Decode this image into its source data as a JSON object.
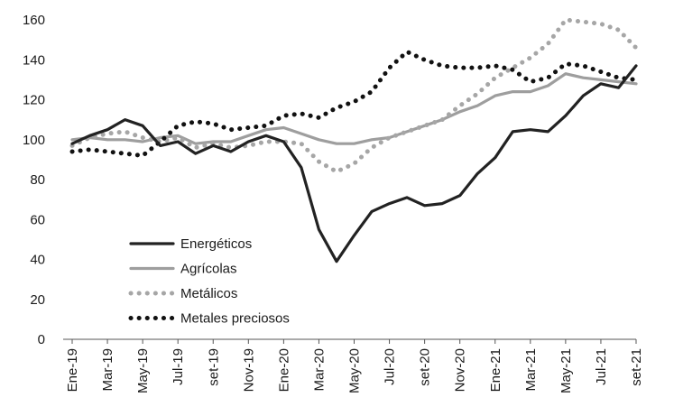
{
  "chart_data": {
    "type": "line",
    "title": "",
    "xlabel": "",
    "ylabel": "",
    "ylim": [
      0,
      160
    ],
    "yticks": [
      0,
      20,
      40,
      60,
      80,
      100,
      120,
      140,
      160
    ],
    "ytick_labels": [
      "0",
      "20",
      "40",
      "60",
      "80",
      "100",
      "120",
      "140",
      "160"
    ],
    "categories": [
      "Ene-19",
      "Feb-19",
      "Mar-19",
      "Abr-19",
      "May-19",
      "Jun-19",
      "Jul-19",
      "Ago-19",
      "set-19",
      "Oct-19",
      "Nov-19",
      "Dic-19",
      "Ene-20",
      "Feb-20",
      "Mar-20",
      "Abr-20",
      "May-20",
      "Jun-20",
      "Jul-20",
      "Ago-20",
      "set-20",
      "Oct-20",
      "Nov-20",
      "Dic-20",
      "Ene-21",
      "Feb-21",
      "Mar-21",
      "Abr-21",
      "May-21",
      "Jun-21",
      "Jul-21",
      "Ago-21",
      "set-21"
    ],
    "xtick_labels": [
      "Ene-19",
      "Mar-19",
      "May-19",
      "Jul-19",
      "set-19",
      "Nov-19",
      "Ene-20",
      "Mar-20",
      "May-20",
      "Jul-20",
      "set-20",
      "Nov-20",
      "Ene-21",
      "Mar-21",
      "May-21",
      "Jul-21",
      "set-21"
    ],
    "grid": false,
    "legend_position": "lower-left",
    "series": [
      {
        "name": "Energéticos",
        "color": "#222222",
        "style": "solid",
        "values": [
          98,
          102,
          105,
          110,
          107,
          97,
          99,
          93,
          97,
          94,
          99,
          102,
          99,
          86,
          55,
          39,
          52,
          64,
          68,
          71,
          67,
          68,
          72,
          83,
          91,
          104,
          105,
          104,
          112,
          122,
          128,
          126,
          137
        ]
      },
      {
        "name": "Agrícolas",
        "color": "#9e9e9e",
        "style": "solid",
        "values": [
          100,
          101,
          100,
          100,
          99,
          101,
          102,
          98,
          99,
          99,
          102,
          105,
          106,
          103,
          100,
          98,
          98,
          100,
          101,
          104,
          107,
          110,
          114,
          117,
          122,
          124,
          124,
          127,
          133,
          131,
          130,
          129,
          128
        ]
      },
      {
        "name": "Metálicos",
        "color": "#a6a6a6",
        "style": "dotted",
        "values": [
          97,
          101,
          103,
          104,
          101,
          99,
          101,
          96,
          98,
          96,
          97,
          99,
          99,
          98,
          89,
          84,
          88,
          96,
          101,
          104,
          107,
          110,
          117,
          123,
          131,
          136,
          141,
          148,
          160,
          159,
          158,
          155,
          146
        ]
      },
      {
        "name": "Metales preciosos",
        "color": "#111111",
        "style": "dotted",
        "values": [
          94,
          95,
          94,
          93,
          92,
          99,
          107,
          109,
          108,
          105,
          106,
          107,
          112,
          113,
          111,
          116,
          119,
          124,
          136,
          144,
          140,
          137,
          136,
          136,
          137,
          135,
          129,
          131,
          138,
          137,
          134,
          131,
          130
        ]
      }
    ]
  }
}
